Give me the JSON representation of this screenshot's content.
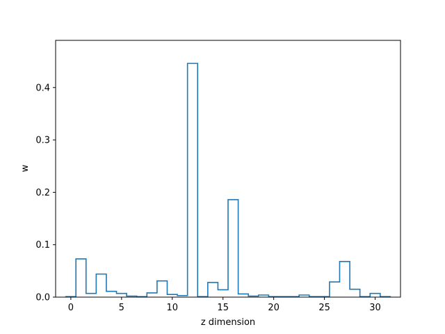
{
  "chart_data": {
    "type": "bar",
    "style": "step-histogram",
    "xlabel": "z dimension",
    "ylabel": "w",
    "xlim": [
      -1.5,
      32.5
    ],
    "ylim": [
      0,
      0.49
    ],
    "xticks": [
      0,
      5,
      10,
      15,
      20,
      25,
      30
    ],
    "yticks": [
      0.0,
      0.1,
      0.2,
      0.3,
      0.4
    ],
    "ytick_labels": [
      "0.0",
      "0.1",
      "0.2",
      "0.3",
      "0.4"
    ],
    "grid": false,
    "line_color": "#1f77b4",
    "x": [
      0,
      1,
      2,
      3,
      4,
      5,
      6,
      7,
      8,
      9,
      10,
      11,
      12,
      13,
      14,
      15,
      16,
      17,
      18,
      19,
      20,
      21,
      22,
      23,
      24,
      25,
      26,
      27,
      28,
      29,
      30,
      31
    ],
    "values": [
      0.001,
      0.073,
      0.007,
      0.044,
      0.011,
      0.007,
      0.002,
      0.001,
      0.008,
      0.031,
      0.005,
      0.003,
      0.446,
      0.001,
      0.028,
      0.014,
      0.186,
      0.006,
      0.002,
      0.004,
      0.001,
      0.001,
      0.001,
      0.004,
      0.001,
      0.001,
      0.029,
      0.068,
      0.015,
      0.001,
      0.007,
      0.001
    ]
  }
}
